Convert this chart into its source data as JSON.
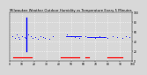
{
  "title": "Milwaukee Weather Outdoor Humidity vs Temperature Every 5 Minutes",
  "title_fontsize": 2.8,
  "background_color": "#d8d8d8",
  "plot_bg_color": "#d8d8d8",
  "grid_color": "#ffffff",
  "xlim": [
    0,
    100
  ],
  "ylim": [
    0,
    100
  ],
  "blue_vertical_x": 14,
  "blue_vertical_y0": 20,
  "blue_vertical_y1": 88,
  "blue_dots": {
    "x": [
      2,
      4,
      6,
      7,
      8,
      10,
      12,
      13,
      15,
      17,
      19,
      21,
      23,
      25,
      27,
      29,
      32,
      35,
      47,
      50,
      53,
      57,
      62,
      66,
      70,
      73,
      77,
      80,
      84,
      88,
      92,
      95,
      98
    ],
    "y": [
      52,
      48,
      55,
      50,
      45,
      52,
      50,
      48,
      55,
      52,
      48,
      50,
      45,
      52,
      50,
      48,
      45,
      52,
      55,
      52,
      50,
      48,
      52,
      50,
      48,
      52,
      50,
      48,
      52,
      50,
      48,
      52,
      50
    ]
  },
  "blue_hline1_x": [
    46,
    58
  ],
  "blue_hline1_y": 52,
  "blue_hline2_x": [
    63,
    78
  ],
  "blue_hline2_y": 50,
  "red_bars": [
    {
      "x": [
        3,
        18
      ],
      "y": 8
    },
    {
      "x": [
        42,
        57
      ],
      "y": 8
    },
    {
      "x": [
        62,
        65
      ],
      "y": 8
    },
    {
      "x": [
        80,
        92
      ],
      "y": 8
    }
  ],
  "yticks": [
    0,
    20,
    40,
    60,
    80,
    100
  ],
  "ytick_labels": [
    "0",
    "20",
    "40",
    "60",
    "80",
    "100"
  ],
  "xtick_step": 10,
  "tick_fontsize": 2.2,
  "linewidth_blue_vert": 1.0,
  "linewidth_red": 0.9,
  "dot_size": 0.4
}
